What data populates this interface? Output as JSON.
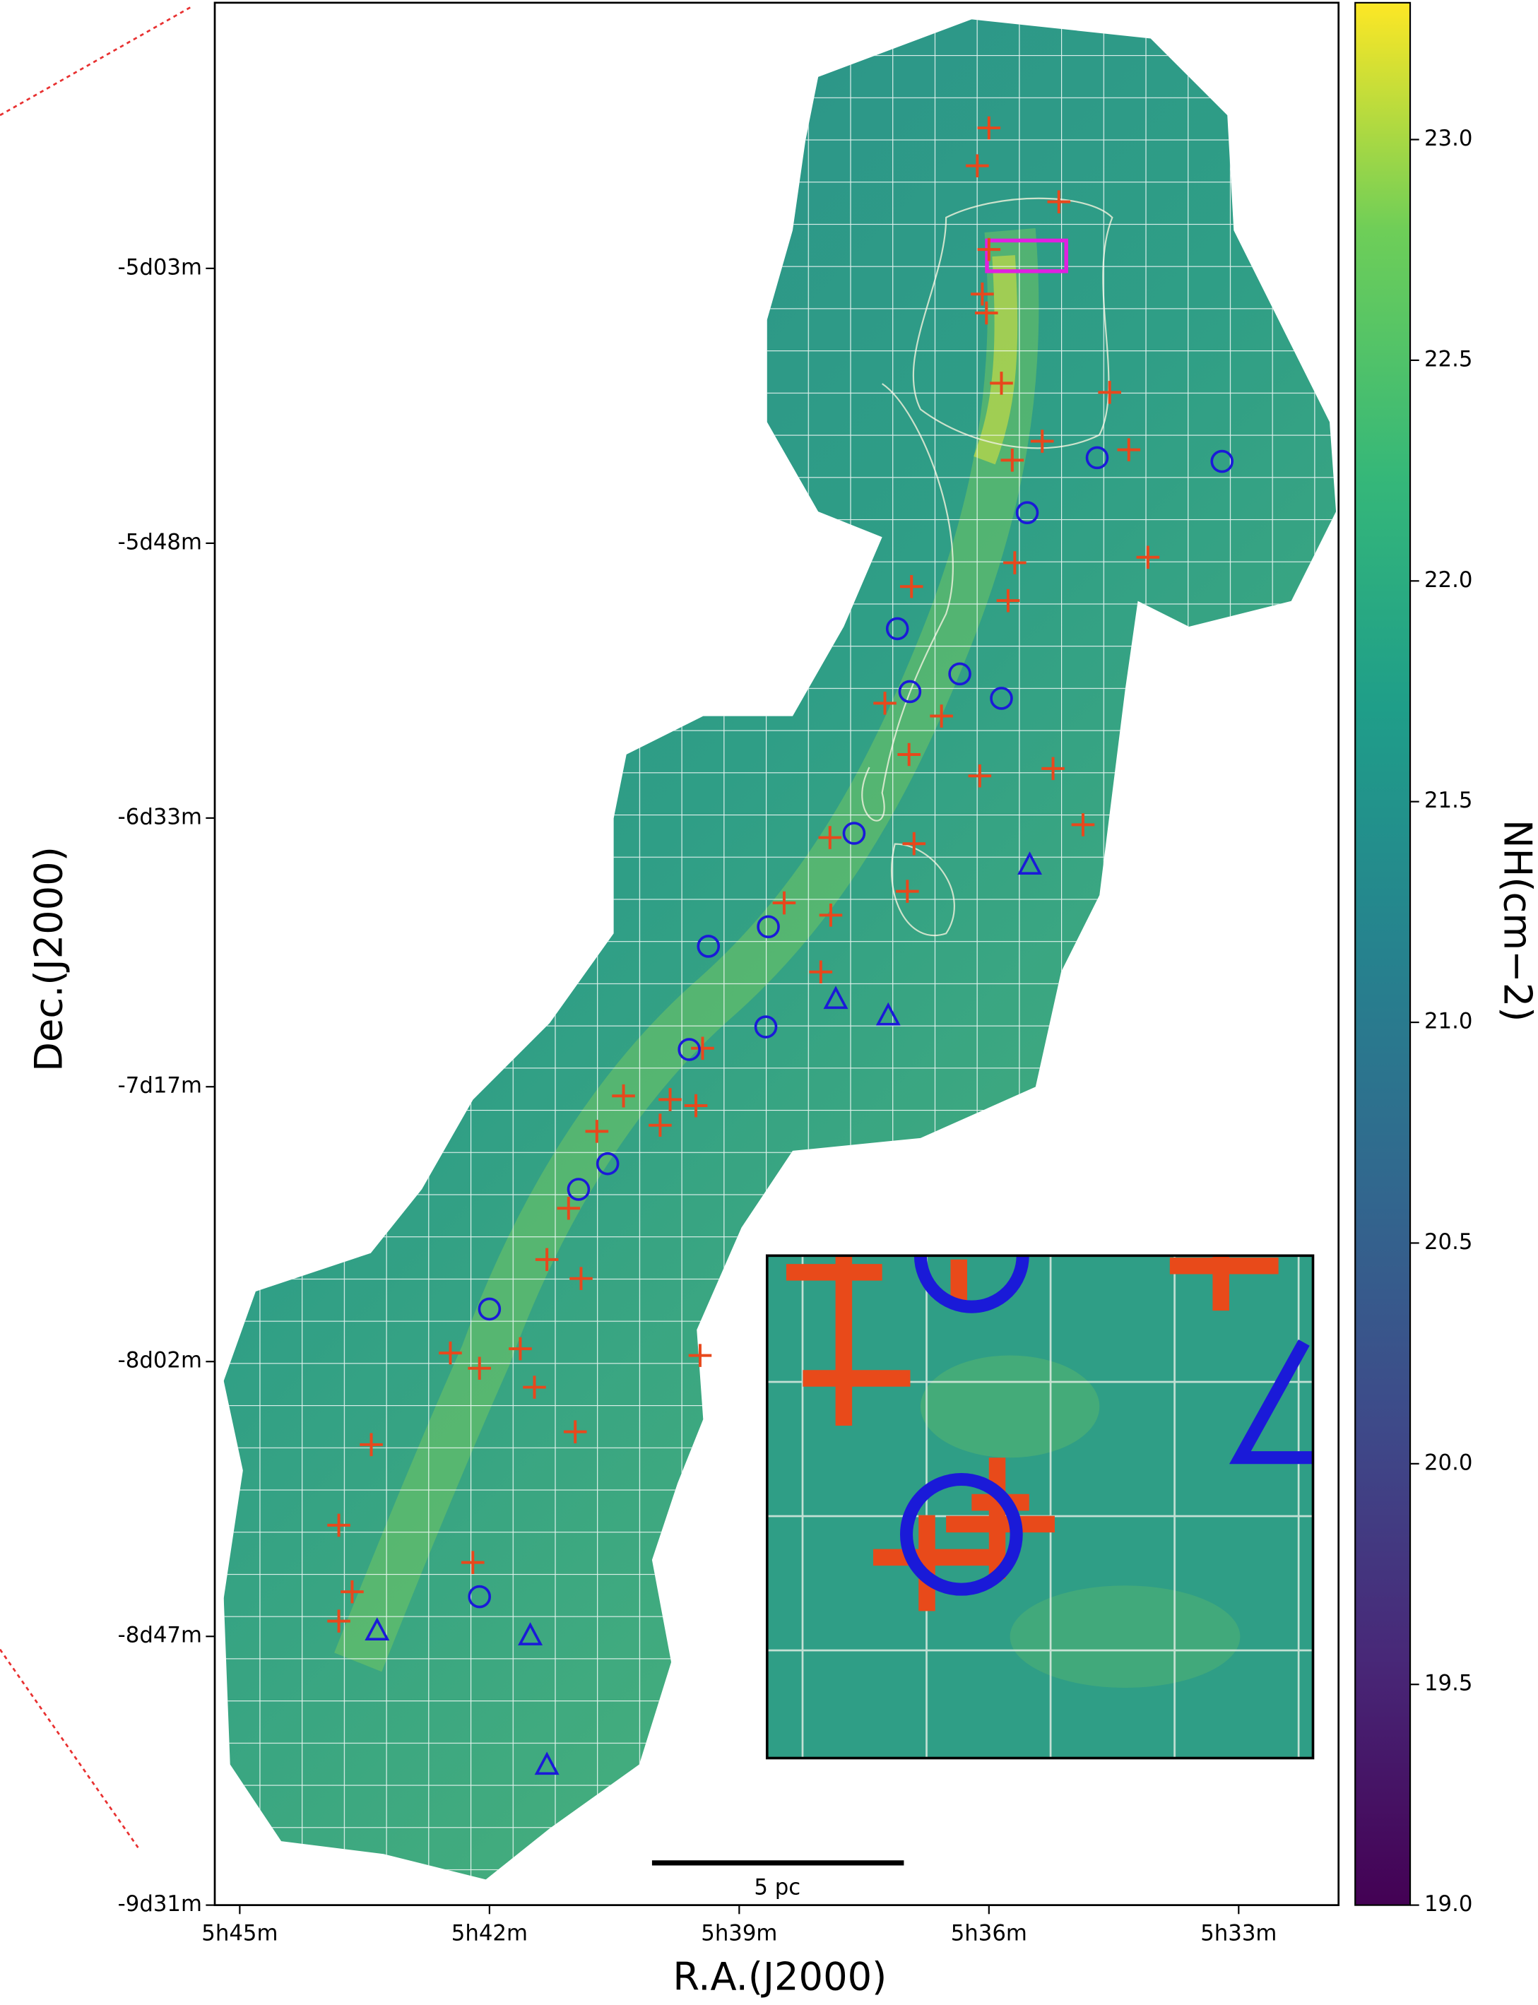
{
  "chart_data": {
    "type": "scatter",
    "xlabel": "R.A.(J2000)",
    "ylabel": "Dec.(J2000)",
    "xlim": [
      345.3,
      331.8
    ],
    "xticks": [
      {
        "value": 345,
        "label": "5h45m"
      },
      {
        "value": 342,
        "label": "5h42m"
      },
      {
        "value": 339,
        "label": "5h39m"
      },
      {
        "value": 336,
        "label": "5h36m"
      },
      {
        "value": 333,
        "label": "5h33m"
      }
    ],
    "ylim": [
      -571,
      -259.5
    ],
    "yticks": [
      {
        "value": -303,
        "label": "-5d03m"
      },
      {
        "value": -348,
        "label": "-5d48m"
      },
      {
        "value": -393,
        "label": "-6d33m"
      },
      {
        "value": -437,
        "label": "-7d17m"
      },
      {
        "value": -482,
        "label": "-8d02m"
      },
      {
        "value": -527,
        "label": "-8d47m"
      },
      {
        "value": -571,
        "label": "-9d31m"
      }
    ],
    "series": [
      {
        "color": "#e8481c",
        "marker": "plus",
        "x": [
          336.0,
          336.14,
          335.16,
          336.0,
          336.08,
          336.03,
          335.85,
          334.55,
          335.72,
          335.36,
          334.32,
          334.09,
          335.69,
          335.77,
          336.93,
          337.25,
          336.57,
          336.96,
          336.11,
          335.23,
          334.87,
          337.91,
          336.9,
          336.98,
          338.46,
          337.9,
          338.02,
          339.44,
          339.83,
          339.52,
          340.39,
          340.71,
          339.95,
          341.05,
          341.31,
          340.9,
          341.63,
          342.47,
          342.12,
          341.46,
          340.97,
          343.42,
          343.81,
          343.65,
          343.81,
          342.2,
          339.47
        ],
        "y": [
          -280.0,
          -286.2,
          -292.1,
          -299.9,
          -307.2,
          -310.3,
          -321.8,
          -323.3,
          -334.4,
          -331.3,
          -332.7,
          -350.3,
          -351.2,
          -357.4,
          -355.1,
          -374.2,
          -376.3,
          -382.6,
          -386.1,
          -384.9,
          -394.1,
          -396.2,
          -397.2,
          -405.0,
          -406.9,
          -408.9,
          -418.2,
          -430.7,
          -439.1,
          -440.1,
          -438.5,
          -444.3,
          -443.3,
          -456.9,
          -465.3,
          -468.4,
          -479.9,
          -480.6,
          -483.1,
          -486.2,
          -493.5,
          -495.6,
          -508.8,
          -519.7,
          -524.5,
          -514.9,
          -481.0
        ]
      },
      {
        "color": "#1a1ad8",
        "marker": "circle",
        "x": [
          334.7,
          333.2,
          335.54,
          337.1,
          336.35,
          335.85,
          336.95,
          337.62,
          338.65,
          339.37,
          338.68,
          339.6,
          340.58,
          340.93,
          342.0,
          342.12
        ],
        "y": [
          -334.0,
          -334.6,
          -343.0,
          -362.0,
          -369.4,
          -373.4,
          -372.3,
          -395.5,
          -410.8,
          -414.0,
          -427.2,
          -430.9,
          -449.6,
          -453.8,
          -473.4,
          -520.5
        ]
      },
      {
        "color": "#1a1ad8",
        "marker": "triangle",
        "x": [
          335.51,
          337.84,
          337.21,
          343.35,
          341.51,
          341.31
        ],
        "y": [
          -400.8,
          -422.8,
          -425.5,
          -526.2,
          -527.0,
          -548.2
        ]
      }
    ],
    "colorbar": {
      "label": "NH(cm−2)",
      "colormap": "viridis",
      "lim": [
        19.0,
        23.31
      ],
      "ticks": [
        {
          "value": 19,
          "label": "19.0"
        },
        {
          "value": 19.5,
          "label": "19.5"
        },
        {
          "value": 20,
          "label": "20.0"
        },
        {
          "value": 20.5,
          "label": "20.5"
        },
        {
          "value": 21,
          "label": "21.0"
        },
        {
          "value": 21.5,
          "label": "21.5"
        },
        {
          "value": 22,
          "label": "22.0"
        },
        {
          "value": 22.5,
          "label": "22.5"
        },
        {
          "value": 23,
          "label": "23.0"
        }
      ]
    },
    "scalebar_label": "5 pc"
  }
}
